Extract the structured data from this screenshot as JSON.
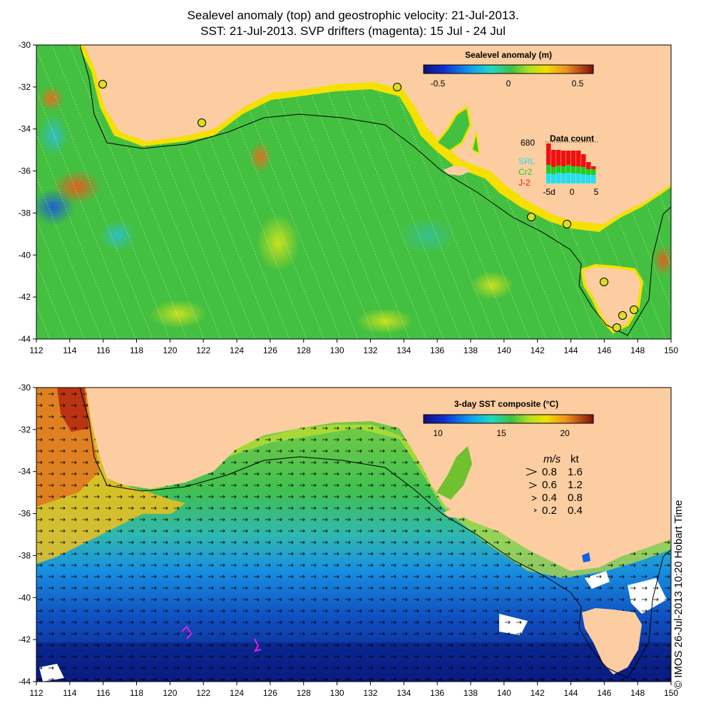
{
  "title_line1": "Sealevel anomaly (top) and geostrophic velocity: 21-Jul-2013.",
  "title_line2": "SST: 21-Jul-2013. SVP drifters (magenta): 15 Jul - 24 Jul",
  "lat_ticks": [
    "-30",
    "-32",
    "-34",
    "-36",
    "-38",
    "-40",
    "-42",
    "-44"
  ],
  "lon_ticks": [
    "112",
    "114",
    "116",
    "118",
    "120",
    "122",
    "124",
    "126",
    "128",
    "130",
    "132",
    "134",
    "136",
    "138",
    "140",
    "142",
    "144",
    "146",
    "148",
    "150"
  ],
  "top_map": {
    "legend_title": "Sealevel anomaly (m)",
    "legend_ticks": [
      "-0.5",
      "0",
      "0.5"
    ],
    "data_count": {
      "title": "Data count",
      "max": "680",
      "series": [
        "SRL",
        "Cr2",
        "J-2"
      ],
      "series_colors": [
        "#22e0f0",
        "#22cc22",
        "#ee1111"
      ],
      "x_ticks": [
        "-5d",
        "0",
        "5"
      ]
    }
  },
  "bottom_map": {
    "legend_title": "3-day SST composite (°C)",
    "legend_ticks": [
      "10",
      "15",
      "20"
    ],
    "speed_legend": {
      "headers": [
        "m/s",
        "kt"
      ],
      "rows": [
        [
          "0.8",
          "1.6"
        ],
        [
          "0.6",
          "1.2"
        ],
        [
          "0.4",
          "0.8"
        ],
        [
          "0.2",
          "0.4"
        ]
      ]
    }
  },
  "copyright": "© IMOS 26-Jul-2013 10:20 Hobart Time",
  "colors": {
    "land": "#fccda0",
    "coast_fringe": "#f5e000",
    "sla_mid": "#44c040"
  }
}
